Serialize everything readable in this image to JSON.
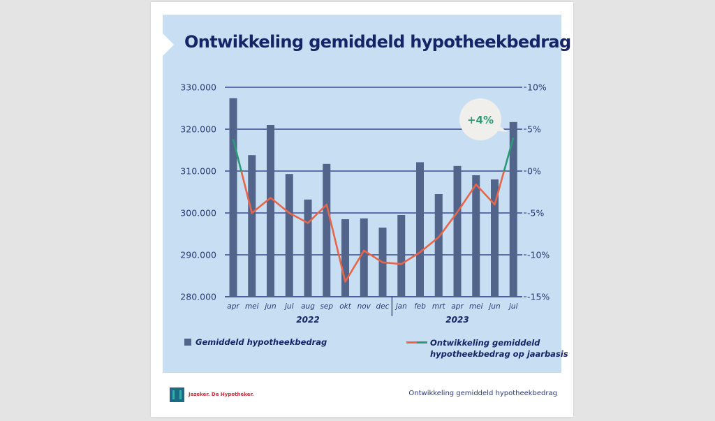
{
  "title": "Ontwikkeling gemiddeld hypotheekbedrag",
  "chart_data": {
    "type": "bar",
    "title": "Ontwikkeling gemiddeld hypotheekbedrag",
    "categories": [
      "apr",
      "mei",
      "jun",
      "jul",
      "aug",
      "sep",
      "okt",
      "nov",
      "dec",
      "jan",
      "feb",
      "mrt",
      "apr",
      "mei",
      "jun",
      "jul"
    ],
    "groups": [
      {
        "label": "2022",
        "from": 0,
        "to": 8
      },
      {
        "label": "2023",
        "from": 9,
        "to": 15
      }
    ],
    "series": [
      {
        "name": "Gemiddeld hypotheekbedrag",
        "type": "bar",
        "axis": "left",
        "color": "#53648a",
        "values": [
          327400,
          313800,
          321000,
          309300,
          303200,
          311700,
          298500,
          298700,
          296500,
          299500,
          312100,
          304500,
          311200,
          309000,
          308000,
          321700
        ]
      },
      {
        "name": "Ontwikkeling gemiddeld hypotheekbedrag op jaarbasis",
        "type": "line",
        "axis": "right",
        "color": "#e8654a",
        "highlight_color": "#2a9a77",
        "values": [
          3.8,
          -5.0,
          -3.2,
          -5.0,
          -6.2,
          -4.0,
          -13.2,
          -9.5,
          -10.9,
          -11.1,
          -9.7,
          -7.9,
          -4.9,
          -1.6,
          -4.0,
          4.0
        ]
      }
    ],
    "y_left": {
      "range": [
        280000,
        330000
      ],
      "ticks": [
        280000,
        290000,
        300000,
        310000,
        320000,
        330000
      ],
      "tick_labels": [
        "280.000",
        "290.000",
        "300.000",
        "310.000",
        "320.000",
        "330.000"
      ]
    },
    "y_right": {
      "range": [
        -15,
        10
      ],
      "ticks": [
        -15,
        -10,
        -5,
        0,
        5,
        10
      ],
      "tick_labels": [
        "-15%",
        "-10%",
        "-5%",
        "0%",
        "5%",
        "10%"
      ]
    },
    "grid": true,
    "annotation": {
      "text": "+4%",
      "category_index": 15
    },
    "legend": {
      "placement": "bottom",
      "items": [
        {
          "label": "Gemiddeld hypotheekbedrag",
          "kind": "bar"
        },
        {
          "label_line1": "Ontwikkeling gemiddeld",
          "label_line2": "hypotheekbedrag op jaarbasis",
          "kind": "line"
        }
      ]
    }
  },
  "footer": {
    "brand": "Jazeker. De Hypotheker.",
    "caption": "Ontwikkeling gemiddeld hypotheekbedrag"
  }
}
